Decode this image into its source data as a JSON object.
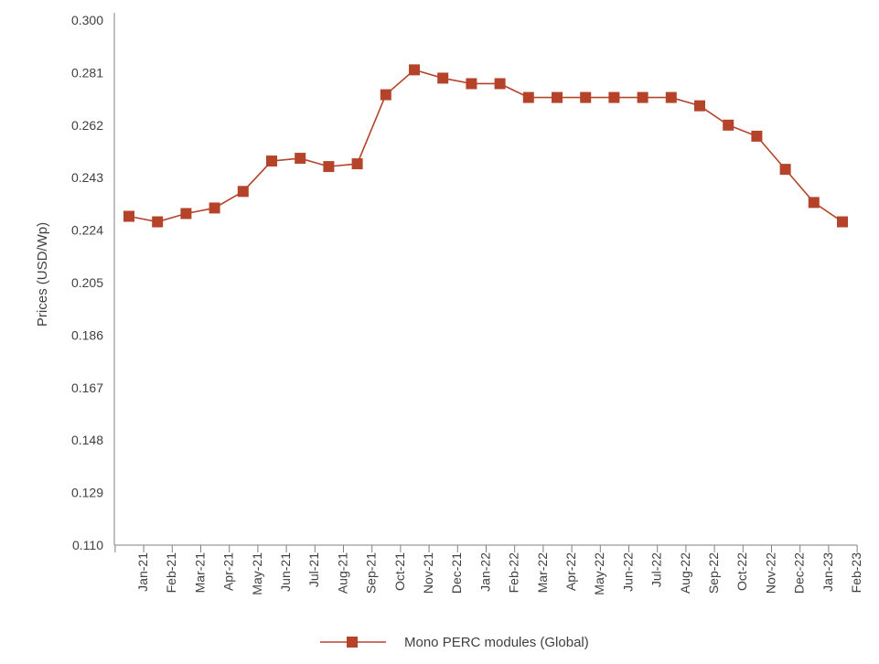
{
  "chart_data": {
    "type": "line",
    "title": "",
    "xlabel": "",
    "ylabel": "Prices (USD/Wp)",
    "ylim": [
      0.11,
      0.3
    ],
    "yticks": [
      "0.300",
      "0.281",
      "0.262",
      "0.243",
      "0.224",
      "0.205",
      "0.186",
      "0.167",
      "0.148",
      "0.129",
      "0.110"
    ],
    "categories": [
      "Jan-21",
      "Feb-21",
      "Mar-21",
      "Apr-21",
      "May-21",
      "Jun-21",
      "Jul-21",
      "Aug-21",
      "Sep-21",
      "Oct-21",
      "Nov-21",
      "Dec-21",
      "Jan-22",
      "Feb-22",
      "Mar-22",
      "Apr-22",
      "May-22",
      "Jun-22",
      "Jul-22",
      "Aug-22",
      "Sep-22",
      "Oct-22",
      "Nov-22",
      "Dec-22",
      "Jan-23",
      "Feb-23"
    ],
    "series": [
      {
        "name": "Mono PERC modules (Global)",
        "color": "#b5432a",
        "marker": "square",
        "values": [
          0.229,
          0.227,
          0.23,
          0.232,
          0.238,
          0.249,
          0.25,
          0.247,
          0.248,
          0.273,
          0.282,
          0.279,
          0.277,
          0.277,
          0.272,
          0.272,
          0.272,
          0.272,
          0.272,
          0.272,
          0.269,
          0.262,
          0.258,
          0.246,
          0.234,
          0.227
        ]
      }
    ],
    "grid": false,
    "legend": "bottom-center"
  },
  "colors": {
    "axis": "#808080",
    "series": "#b5432a"
  }
}
